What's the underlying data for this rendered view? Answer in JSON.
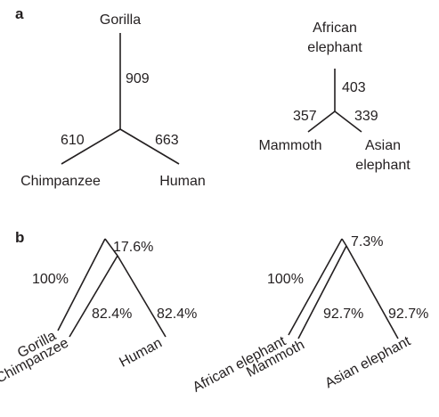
{
  "panel_a": {
    "label": "a",
    "primates": {
      "gorilla": "Gorilla",
      "chimpanzee": "Chimpanzee",
      "human": "Human",
      "branch_gorilla": "909",
      "branch_chimpanzee": "610",
      "branch_human": "663"
    },
    "elephants": {
      "african_line1": "African",
      "african_line2": "elephant",
      "mammoth": "Mammoth",
      "asian_line1": "Asian",
      "asian_line2": "elephant",
      "branch_african": "403",
      "branch_mammoth": "357",
      "branch_asian": "339"
    }
  },
  "panel_b": {
    "label": "b",
    "primates": {
      "gorilla": "Gorilla",
      "chimpanzee": "Chimpanzee",
      "human": "Human",
      "support_gorilla": "100%",
      "support_root": "17.6%",
      "support_chimp_human": "82.4%",
      "support_human": "82.4%"
    },
    "elephants": {
      "african": "African elephant",
      "mammoth": "Mammoth",
      "asian": "Asian elephant",
      "support_african": "100%",
      "support_root": "7.3%",
      "support_mammoth_asian": "92.7%",
      "support_asian": "92.7%"
    }
  }
}
